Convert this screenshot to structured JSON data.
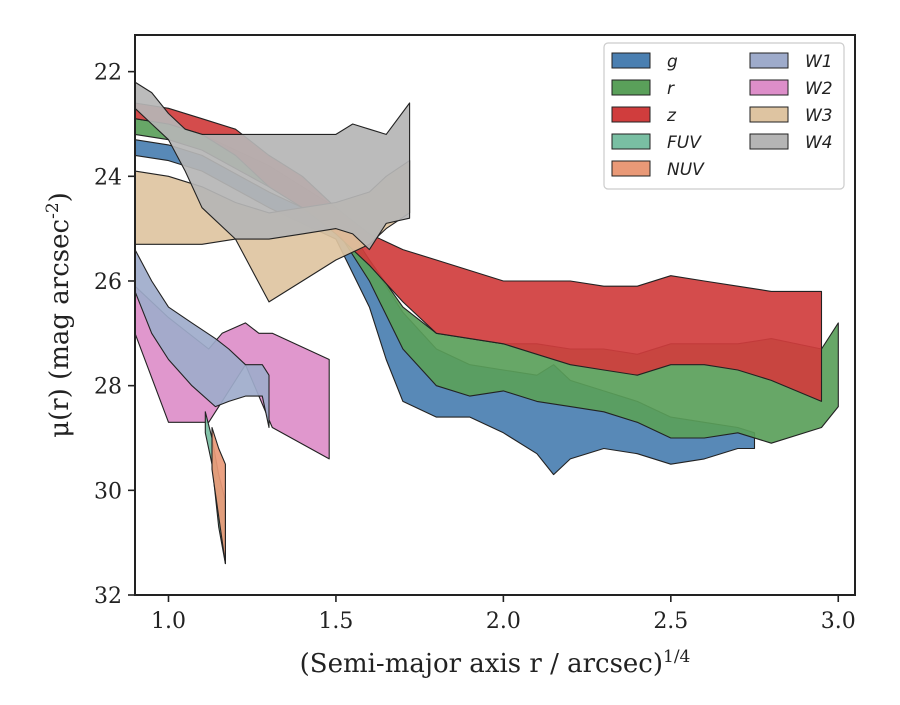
{
  "chart_data": {
    "type": "area",
    "title": "",
    "xlabel": "(Semi-major axis r / arcsec)^{1/4}",
    "ylabel": "μ(r) (mag arcsec^-2)",
    "xlim": [
      0.9,
      3.05
    ],
    "ylim": [
      32,
      21.3
    ],
    "y_inverted": true,
    "grid": false,
    "legend_position": "top-right",
    "legend_columns": 2,
    "x_ticks": [
      "1.0",
      "1.5",
      "2.0",
      "2.5",
      "3.0"
    ],
    "y_ticks": [
      "22",
      "24",
      "26",
      "28",
      "30",
      "32"
    ],
    "series": [
      {
        "name": "W2",
        "color": "#dd8ec9",
        "x": [
          0.9,
          1.0,
          1.12,
          1.16,
          1.23,
          1.27,
          1.31,
          1.48
        ],
        "y_upper": [
          26.1,
          26.7,
          27.3,
          27.0,
          26.8,
          27.0,
          27.0,
          27.5
        ],
        "y_lower": [
          27.0,
          28.7,
          28.7,
          28.3,
          27.6,
          28.2,
          28.8,
          29.4
        ]
      },
      {
        "name": "W1",
        "color": "#9eabcb",
        "x": [
          0.9,
          0.95,
          1.0,
          1.07,
          1.14,
          1.18,
          1.23,
          1.28,
          1.3
        ],
        "y_upper": [
          25.4,
          26.0,
          26.5,
          26.8,
          27.1,
          27.3,
          27.6,
          27.6,
          27.8
        ],
        "y_lower": [
          26.2,
          27.0,
          27.5,
          28.0,
          28.4,
          28.3,
          28.2,
          28.2,
          28.8
        ]
      },
      {
        "name": "FUV",
        "color": "#79bfa3",
        "x": [
          1.11,
          1.13,
          1.15,
          1.17
        ],
        "y_upper": [
          28.5,
          29.0,
          29.7,
          30.2
        ],
        "y_lower": [
          28.9,
          29.5,
          30.7,
          31.4
        ]
      },
      {
        "name": "NUV",
        "color": "#e99977",
        "x": [
          1.13,
          1.15,
          1.17
        ],
        "y_upper": [
          28.8,
          29.2,
          29.5
        ],
        "y_lower": [
          29.6,
          30.5,
          31.4
        ]
      },
      {
        "name": "g",
        "color": "#4a7fb1",
        "x": [
          0.9,
          1.0,
          1.1,
          1.3,
          1.5,
          1.6,
          1.65,
          1.7,
          1.8,
          1.9,
          2.0,
          2.1,
          2.15,
          2.2,
          2.3,
          2.4,
          2.5,
          2.6,
          2.7,
          2.75
        ],
        "y_upper": [
          23.3,
          23.4,
          23.6,
          24.3,
          24.9,
          25.6,
          26.1,
          26.6,
          27.3,
          27.6,
          27.7,
          27.8,
          27.6,
          27.9,
          28.1,
          28.3,
          28.6,
          28.7,
          28.8,
          28.9
        ],
        "y_lower": [
          23.6,
          23.7,
          23.9,
          24.6,
          25.2,
          26.5,
          27.5,
          28.3,
          28.6,
          28.6,
          28.9,
          29.3,
          29.7,
          29.4,
          29.2,
          29.3,
          29.5,
          29.4,
          29.2,
          29.2
        ]
      },
      {
        "name": "r",
        "color": "#5aa05a",
        "x": [
          0.9,
          1.0,
          1.1,
          1.3,
          1.5,
          1.6,
          1.7,
          1.8,
          1.9,
          2.0,
          2.1,
          2.2,
          2.3,
          2.4,
          2.5,
          2.6,
          2.7,
          2.8,
          2.95,
          3.0
        ],
        "y_upper": [
          22.9,
          23.0,
          23.2,
          23.8,
          24.6,
          25.6,
          26.5,
          27.0,
          27.1,
          27.2,
          27.2,
          27.3,
          27.3,
          27.4,
          27.2,
          27.2,
          27.2,
          27.1,
          27.3,
          26.8
        ],
        "y_lower": [
          23.2,
          23.3,
          23.5,
          24.2,
          25.0,
          26.0,
          27.3,
          28.0,
          28.2,
          28.1,
          28.3,
          28.4,
          28.5,
          28.7,
          29.0,
          29.0,
          28.9,
          29.1,
          28.8,
          28.4
        ]
      },
      {
        "name": "z",
        "color": "#d03d3d",
        "x": [
          0.9,
          1.0,
          1.1,
          1.2,
          1.3,
          1.4,
          1.5,
          1.6,
          1.7,
          1.8,
          1.9,
          2.0,
          2.1,
          2.2,
          2.3,
          2.4,
          2.5,
          2.6,
          2.7,
          2.8,
          2.95
        ],
        "y_upper": [
          22.6,
          22.7,
          22.9,
          23.1,
          23.6,
          24.0,
          24.6,
          25.1,
          25.4,
          25.6,
          25.8,
          26.0,
          26.0,
          26.0,
          26.1,
          26.1,
          25.9,
          26.0,
          26.1,
          26.2,
          26.2
        ],
        "y_lower": [
          22.9,
          23.0,
          23.2,
          23.6,
          24.2,
          24.6,
          25.1,
          25.7,
          26.4,
          27.0,
          27.1,
          27.2,
          27.4,
          27.6,
          27.7,
          27.8,
          27.6,
          27.6,
          27.7,
          27.9,
          28.3
        ]
      },
      {
        "name": "W3",
        "color": "#dec4a1",
        "x": [
          0.9,
          1.0,
          1.1,
          1.2,
          1.3,
          1.4,
          1.5,
          1.6,
          1.65,
          1.72
        ],
        "y_upper": [
          23.9,
          24.0,
          24.2,
          24.5,
          24.7,
          24.6,
          24.5,
          24.3,
          24.0,
          23.7
        ],
        "y_lower": [
          25.3,
          25.3,
          25.3,
          25.2,
          26.4,
          26.0,
          25.6,
          25.3,
          25.0,
          24.7
        ]
      },
      {
        "name": "W4",
        "color": "#b5b5b5",
        "x": [
          0.9,
          0.95,
          1.0,
          1.05,
          1.1,
          1.2,
          1.3,
          1.4,
          1.5,
          1.55,
          1.6,
          1.65,
          1.72
        ],
        "y_upper": [
          22.2,
          22.4,
          22.8,
          23.1,
          23.2,
          23.2,
          23.2,
          23.2,
          23.2,
          23.0,
          23.1,
          23.2,
          22.6
        ],
        "y_lower": [
          22.7,
          23.0,
          23.3,
          23.9,
          24.6,
          25.2,
          25.2,
          25.1,
          25.0,
          25.1,
          25.4,
          24.9,
          24.8
        ]
      }
    ],
    "legend": [
      {
        "label": "g",
        "color": "#4a7fb1"
      },
      {
        "label": "r",
        "color": "#5aa05a"
      },
      {
        "label": "z",
        "color": "#d03d3d"
      },
      {
        "label": "FUV",
        "color": "#79bfa3"
      },
      {
        "label": "NUV",
        "color": "#e99977"
      },
      {
        "label": "W1",
        "color": "#9eabcb"
      },
      {
        "label": "W2",
        "color": "#dd8ec9"
      },
      {
        "label": "W3",
        "color": "#dec4a1"
      },
      {
        "label": "W4",
        "color": "#b5b5b5"
      }
    ]
  }
}
